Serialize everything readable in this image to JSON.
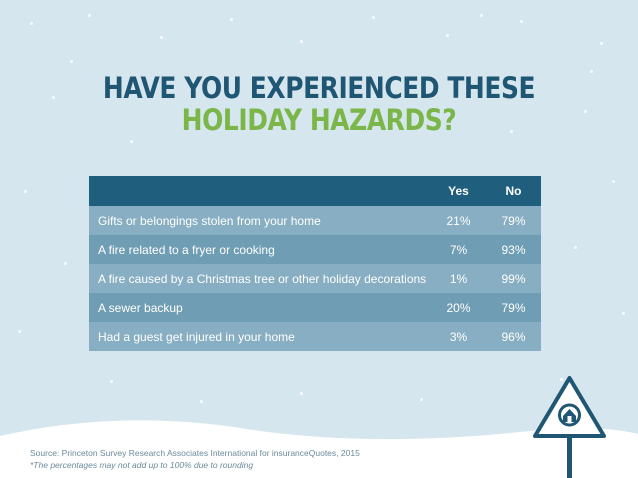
{
  "title": {
    "line1": "HAVE YOU EXPERIENCED THESE",
    "line2": "HOLIDAY HAZARDS?"
  },
  "table": {
    "headers": [
      "",
      "Yes",
      "No"
    ],
    "rows": [
      {
        "label": "Gifts or belongings stolen from your home",
        "yes": "21%",
        "no": "79%"
      },
      {
        "label": "A fire related to a fryer or cooking",
        "yes": "7%",
        "no": "93%"
      },
      {
        "label": "A fire caused by a Christmas tree or other holiday decorations",
        "yes": "1%",
        "no": "99%"
      },
      {
        "label": "A sewer backup",
        "yes": "20%",
        "no": "79%"
      },
      {
        "label": "Had a guest get injured in your home",
        "yes": "3%",
        "no": "96%"
      }
    ]
  },
  "footer": {
    "source": "Source: Princeton Survey Research Associates International for insuranceQuotes, 2015",
    "note": "*The percentages may not add up to 100% due to rounding"
  },
  "colors": {
    "background": "#d6e6ee",
    "title_dark": "#1f5673",
    "title_green": "#7ab648",
    "header_bg": "#1f5e7d",
    "row_light": "#87aec2",
    "row_dark": "#6f9db4"
  },
  "icons": {
    "sign": "warning-sign-icon"
  },
  "chart_data": {
    "type": "table",
    "title": "HAVE YOU EXPERIENCED THESE HOLIDAY HAZARDS?",
    "columns": [
      "Yes",
      "No"
    ],
    "categories": [
      "Gifts or belongings stolen from your home",
      "A fire related to a fryer or cooking",
      "A fire caused by a Christmas tree or other holiday decorations",
      "A sewer backup",
      "Had a guest get injured in your home"
    ],
    "series": [
      {
        "name": "Yes",
        "values": [
          21,
          7,
          1,
          20,
          3
        ]
      },
      {
        "name": "No",
        "values": [
          79,
          93,
          99,
          79,
          96
        ]
      }
    ]
  }
}
